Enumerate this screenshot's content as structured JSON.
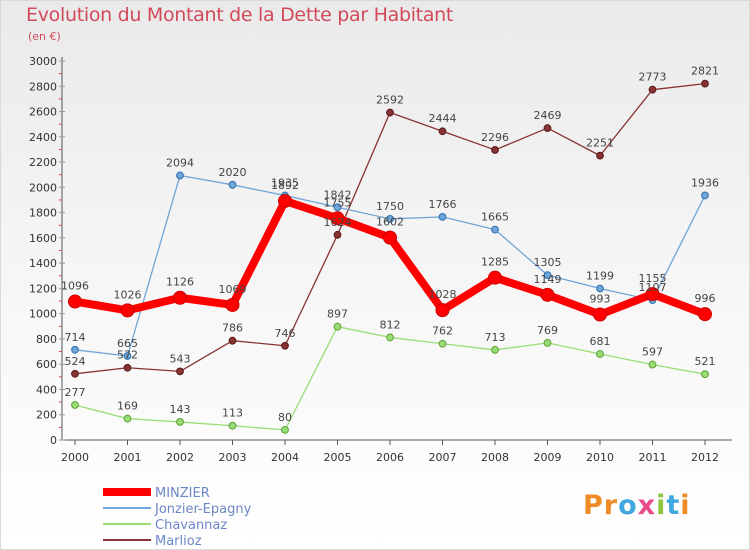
{
  "chart_data": {
    "type": "line",
    "title": "Evolution du Montant de la Dette par Habitant",
    "subtitle": "(en €)",
    "categories": [
      "2000",
      "2001",
      "2002",
      "2003",
      "2004",
      "2005",
      "2006",
      "2007",
      "2008",
      "2009",
      "2010",
      "2011",
      "2012"
    ],
    "ylim": [
      0,
      3000
    ],
    "ytick_step": 200,
    "grid": false,
    "legend_position": "bottom-left",
    "series": [
      {
        "name": "MINZIER",
        "color": "#ff0000",
        "values": [
          1096,
          1026,
          1126,
          1069,
          1892,
          1755,
          1602,
          1028,
          1285,
          1149,
          993,
          1155,
          996
        ]
      },
      {
        "name": "Jonzier-Epagny",
        "color": "#6fa5d8",
        "values": [
          714,
          665,
          2094,
          2020,
          1935,
          1842,
          1750,
          1766,
          1665,
          1305,
          1199,
          1107,
          1936
        ]
      },
      {
        "name": "Chavannaz",
        "color": "#99dd77",
        "values": [
          277,
          169,
          143,
          113,
          80,
          897,
          812,
          762,
          713,
          769,
          681,
          597,
          521
        ]
      },
      {
        "name": "Marlioz",
        "color": "#883333",
        "values": [
          524,
          572,
          543,
          786,
          746,
          1624,
          2592,
          2444,
          2296,
          2469,
          2251,
          2773,
          2821
        ]
      }
    ]
  },
  "logo_text": "Proxiti"
}
